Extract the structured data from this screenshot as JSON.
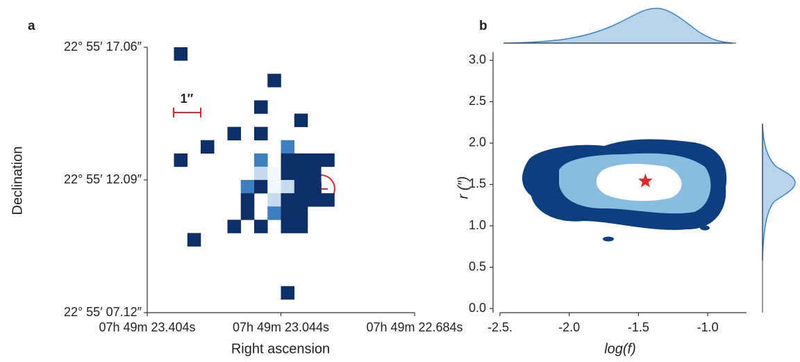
{
  "chart_data": [
    {
      "type": "heatmap",
      "panel": "a",
      "xlabel": "Right ascension",
      "ylabel": "Declination",
      "x_categories": [
        "07h 49m 23.404s",
        "07h 49m 23.044s",
        "07h 49m 22.684s"
      ],
      "y_categories": [
        "22° 55′ 17.06″",
        "22° 55′ 12.09″",
        "22° 55′ 07.12″"
      ],
      "grid_size": [
        20,
        20
      ],
      "level_colors": [
        "#0b2f66",
        "#3d7fc1",
        "#c6dbef",
        "#f3f8fd"
      ],
      "cells": [
        [
          2,
          0,
          1
        ],
        [
          9,
          2,
          1
        ],
        [
          8,
          4,
          1
        ],
        [
          11,
          5,
          1
        ],
        [
          6,
          6,
          1
        ],
        [
          8,
          6,
          1
        ],
        [
          4,
          7,
          1
        ],
        [
          10,
          7,
          2
        ],
        [
          2,
          8,
          1
        ],
        [
          8,
          8,
          2
        ],
        [
          10,
          8,
          1
        ],
        [
          11,
          8,
          1
        ],
        [
          12,
          8,
          1
        ],
        [
          13,
          8,
          1
        ],
        [
          8,
          9,
          3
        ],
        [
          9,
          9,
          4
        ],
        [
          10,
          9,
          1
        ],
        [
          11,
          9,
          1
        ],
        [
          12,
          9,
          1
        ],
        [
          7,
          10,
          2
        ],
        [
          8,
          10,
          1
        ],
        [
          9,
          10,
          4
        ],
        [
          10,
          10,
          3
        ],
        [
          11,
          10,
          1
        ],
        [
          12,
          10,
          1
        ],
        [
          7,
          11,
          1
        ],
        [
          9,
          11,
          3
        ],
        [
          10,
          11,
          1
        ],
        [
          11,
          11,
          1
        ],
        [
          12,
          11,
          1
        ],
        [
          13,
          11,
          1
        ],
        [
          7,
          12,
          1
        ],
        [
          9,
          12,
          2
        ],
        [
          10,
          12,
          1
        ],
        [
          11,
          12,
          1
        ],
        [
          6,
          13,
          1
        ],
        [
          8,
          13,
          1
        ],
        [
          10,
          13,
          1
        ],
        [
          11,
          13,
          1
        ],
        [
          3,
          14,
          1
        ],
        [
          10,
          18,
          1
        ]
      ],
      "scale_bar_label": "1″"
    },
    {
      "type": "scatter",
      "panel": "b",
      "xlabel": "log(f)",
      "ylabel": "r (″)",
      "x": [
        -1.45
      ],
      "values": [
        1.54
      ],
      "color": "#e8262a",
      "marker": "star",
      "xlim": [
        -2.55,
        -0.72
      ],
      "ylim": [
        -0.05,
        3.1
      ],
      "xticks": [
        {
          "value": -2.5,
          "label": "-2.5."
        },
        {
          "value": -2.0,
          "label": "-2.0"
        },
        {
          "value": -1.5,
          "label": "-1.5"
        },
        {
          "value": -1.0,
          "label": "-1.0"
        }
      ],
      "yticks": [
        {
          "value": 0,
          "label": "0.0"
        },
        {
          "value": 0.5,
          "label": "0.5"
        },
        {
          "value": 1,
          "label": "1.0"
        },
        {
          "value": 1.5,
          "label": "1.5"
        },
        {
          "value": 2,
          "label": "2.0"
        },
        {
          "value": 2.5,
          "label": "2.5"
        },
        {
          "value": 3,
          "label": "3.0"
        }
      ]
    }
  ]
}
